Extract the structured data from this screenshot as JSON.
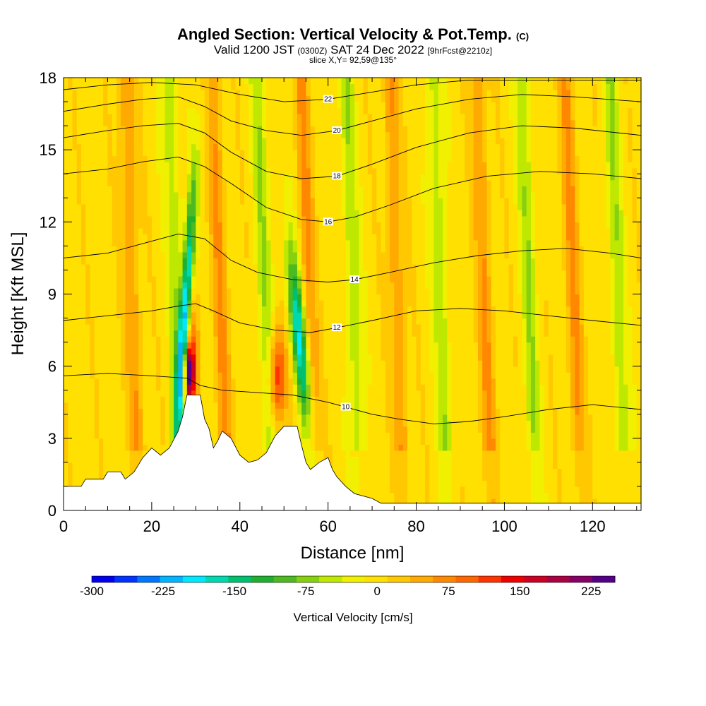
{
  "header": {
    "title_main": "Angled Section: Vertical Velocity & Pot.Temp.",
    "title_copy": "(C)",
    "valid_a": "Valid 1200 JST",
    "valid_b": "(0300Z)",
    "valid_c": "SAT 24 Dec 2022",
    "valid_d": "[9hrFcst@2210z]",
    "slice": "slice X,Y= 92,59@135°"
  },
  "chart_data": {
    "type": "heatmap",
    "xlabel": "Distance [nm]",
    "ylabel": "Height [Kft MSL]",
    "xlim": [
      0,
      131
    ],
    "ylim": [
      0,
      18
    ],
    "x_ticks": [
      "0",
      "20",
      "40",
      "60",
      "80",
      "100",
      "120"
    ],
    "y_ticks": [
      "0",
      "3",
      "6",
      "9",
      "12",
      "15",
      "18"
    ],
    "x_tick_values": [
      0,
      20,
      40,
      60,
      80,
      100,
      120
    ],
    "y_tick_values": [
      0,
      3,
      6,
      9,
      12,
      15,
      18
    ],
    "colorbar": {
      "label": "Vertical Velocity [cm/s]",
      "min": -300,
      "max": 250,
      "tick_labels": [
        "-300",
        "-225",
        "-150",
        "-75",
        "0",
        "75",
        "150",
        "225"
      ],
      "tick_values": [
        -300,
        -225,
        -150,
        -75,
        0,
        75,
        150,
        225
      ],
      "colors": [
        "#0000ee",
        "#0033ff",
        "#0077ff",
        "#00b4ff",
        "#00e8ff",
        "#00d8b0",
        "#00c070",
        "#20b030",
        "#4cba20",
        "#86d010",
        "#bfe800",
        "#f0f000",
        "#ffe000",
        "#ffc800",
        "#ffaa00",
        "#ff8800",
        "#ff6600",
        "#ff3300",
        "#ee0000",
        "#cc0022",
        "#aa0044",
        "#880066",
        "#550088"
      ]
    },
    "terrain_kft": [
      [
        0,
        1.0
      ],
      [
        4,
        1.0
      ],
      [
        5,
        1.3
      ],
      [
        9,
        1.3
      ],
      [
        10,
        1.6
      ],
      [
        13,
        1.6
      ],
      [
        14,
        1.3
      ],
      [
        16,
        1.6
      ],
      [
        18,
        2.2
      ],
      [
        20,
        2.6
      ],
      [
        22,
        2.3
      ],
      [
        24,
        2.6
      ],
      [
        26,
        3.3
      ],
      [
        27,
        3.9
      ],
      [
        28,
        4.8
      ],
      [
        31,
        4.8
      ],
      [
        32,
        3.8
      ],
      [
        33,
        3.4
      ],
      [
        34,
        2.6
      ],
      [
        35,
        2.9
      ],
      [
        36,
        3.3
      ],
      [
        38,
        3.0
      ],
      [
        40,
        2.3
      ],
      [
        42,
        2.0
      ],
      [
        44,
        2.1
      ],
      [
        46,
        2.4
      ],
      [
        48,
        3.1
      ],
      [
        50,
        3.5
      ],
      [
        53,
        3.5
      ],
      [
        54,
        2.7
      ],
      [
        55,
        2.0
      ],
      [
        56,
        1.7
      ],
      [
        58,
        2.0
      ],
      [
        60,
        2.2
      ],
      [
        61,
        1.7
      ],
      [
        62,
        1.4
      ],
      [
        64,
        1.0
      ],
      [
        66,
        0.7
      ],
      [
        70,
        0.5
      ],
      [
        72,
        0.3
      ],
      [
        131,
        0.3
      ]
    ],
    "theta_contours": [
      {
        "label": "10",
        "points": [
          [
            0,
            5.6
          ],
          [
            10,
            5.7
          ],
          [
            20,
            5.6
          ],
          [
            28,
            5.5
          ],
          [
            31,
            5.2
          ],
          [
            36,
            5.0
          ],
          [
            44,
            4.9
          ],
          [
            52,
            4.8
          ],
          [
            60,
            4.5
          ],
          [
            64,
            4.3
          ],
          [
            70,
            4.0
          ],
          [
            76,
            3.8
          ],
          [
            84,
            3.6
          ],
          [
            92,
            3.7
          ],
          [
            100,
            3.9
          ],
          [
            110,
            4.2
          ],
          [
            120,
            4.4
          ],
          [
            131,
            4.2
          ]
        ]
      },
      {
        "label": "12",
        "points": [
          [
            0,
            7.9
          ],
          [
            10,
            8.1
          ],
          [
            20,
            8.3
          ],
          [
            26,
            8.5
          ],
          [
            30,
            8.6
          ],
          [
            34,
            8.3
          ],
          [
            40,
            7.8
          ],
          [
            48,
            7.5
          ],
          [
            56,
            7.4
          ],
          [
            62,
            7.6
          ],
          [
            70,
            7.9
          ],
          [
            80,
            8.3
          ],
          [
            90,
            8.4
          ],
          [
            100,
            8.3
          ],
          [
            110,
            8.1
          ],
          [
            120,
            7.9
          ],
          [
            131,
            7.7
          ]
        ]
      },
      {
        "label": "14",
        "points": [
          [
            0,
            10.5
          ],
          [
            10,
            10.7
          ],
          [
            20,
            11.2
          ],
          [
            26,
            11.5
          ],
          [
            32,
            11.3
          ],
          [
            38,
            10.4
          ],
          [
            44,
            9.9
          ],
          [
            52,
            9.6
          ],
          [
            60,
            9.5
          ],
          [
            66,
            9.6
          ],
          [
            74,
            9.9
          ],
          [
            84,
            10.3
          ],
          [
            94,
            10.6
          ],
          [
            104,
            10.8
          ],
          [
            114,
            10.9
          ],
          [
            124,
            10.7
          ],
          [
            131,
            10.5
          ]
        ]
      },
      {
        "label": "16",
        "points": [
          [
            0,
            14.0
          ],
          [
            10,
            14.2
          ],
          [
            18,
            14.5
          ],
          [
            26,
            14.7
          ],
          [
            32,
            14.3
          ],
          [
            38,
            13.6
          ],
          [
            46,
            12.6
          ],
          [
            54,
            12.1
          ],
          [
            60,
            12.0
          ],
          [
            66,
            12.2
          ],
          [
            74,
            12.7
          ],
          [
            84,
            13.4
          ],
          [
            96,
            13.9
          ],
          [
            108,
            14.1
          ],
          [
            120,
            14.0
          ],
          [
            131,
            13.8
          ]
        ]
      },
      {
        "label": "18",
        "points": [
          [
            0,
            15.5
          ],
          [
            10,
            15.8
          ],
          [
            18,
            16.0
          ],
          [
            26,
            16.1
          ],
          [
            32,
            15.7
          ],
          [
            38,
            14.9
          ],
          [
            46,
            14.1
          ],
          [
            54,
            13.8
          ],
          [
            62,
            13.9
          ],
          [
            70,
            14.4
          ],
          [
            80,
            15.1
          ],
          [
            92,
            15.7
          ],
          [
            104,
            16.0
          ],
          [
            116,
            15.9
          ],
          [
            131,
            15.6
          ]
        ]
      },
      {
        "label": "20",
        "points": [
          [
            0,
            16.6
          ],
          [
            10,
            16.9
          ],
          [
            18,
            17.1
          ],
          [
            26,
            17.2
          ],
          [
            32,
            16.8
          ],
          [
            38,
            16.2
          ],
          [
            46,
            15.8
          ],
          [
            54,
            15.6
          ],
          [
            62,
            15.8
          ],
          [
            70,
            16.2
          ],
          [
            80,
            16.7
          ],
          [
            92,
            17.1
          ],
          [
            104,
            17.3
          ],
          [
            116,
            17.2
          ],
          [
            131,
            17.0
          ]
        ]
      },
      {
        "label": "22",
        "points": [
          [
            0,
            17.5
          ],
          [
            10,
            17.7
          ],
          [
            20,
            17.8
          ],
          [
            30,
            17.7
          ],
          [
            40,
            17.3
          ],
          [
            50,
            17.0
          ],
          [
            60,
            17.1
          ],
          [
            70,
            17.4
          ],
          [
            80,
            17.7
          ],
          [
            92,
            17.9
          ],
          [
            131,
            17.9
          ]
        ]
      }
    ]
  }
}
